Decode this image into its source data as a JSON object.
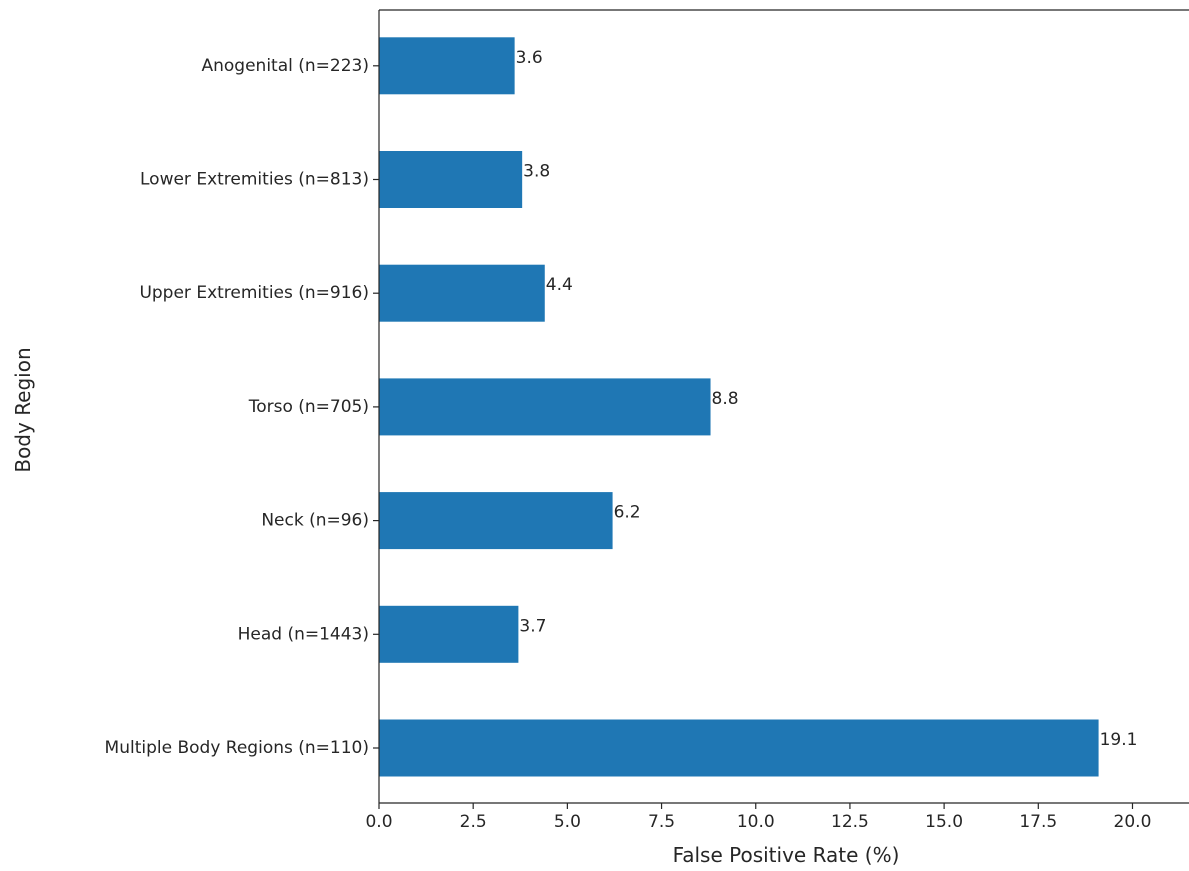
{
  "chart_data": {
    "type": "bar",
    "orientation": "horizontal",
    "categories": [
      "Multiple Body Regions (n=110)",
      "Head (n=1443)",
      "Neck (n=96)",
      "Torso (n=705)",
      "Upper Extremities (n=916)",
      "Lower Extremities (n=813)",
      "Anogenital (n=223)"
    ],
    "values": [
      19.1,
      3.7,
      6.2,
      8.8,
      4.4,
      3.8,
      3.6
    ],
    "data_labels": [
      "19.1",
      "3.7",
      "6.2",
      "8.8",
      "4.4",
      "3.8",
      "3.6"
    ],
    "xlabel": "False Positive Rate (%)",
    "ylabel": "Body Region",
    "xlim": [
      0,
      21.5
    ],
    "x_ticks": [
      0,
      2.5,
      5,
      7.5,
      10,
      12.5,
      15,
      17.5,
      20
    ],
    "x_tick_labels": [
      "0.0",
      "2.5",
      "5.0",
      "7.5",
      "10.0",
      "12.5",
      "15.0",
      "17.5",
      "20.0"
    ],
    "grid": false,
    "legend": "none",
    "bar_color": "#1f77b4"
  }
}
